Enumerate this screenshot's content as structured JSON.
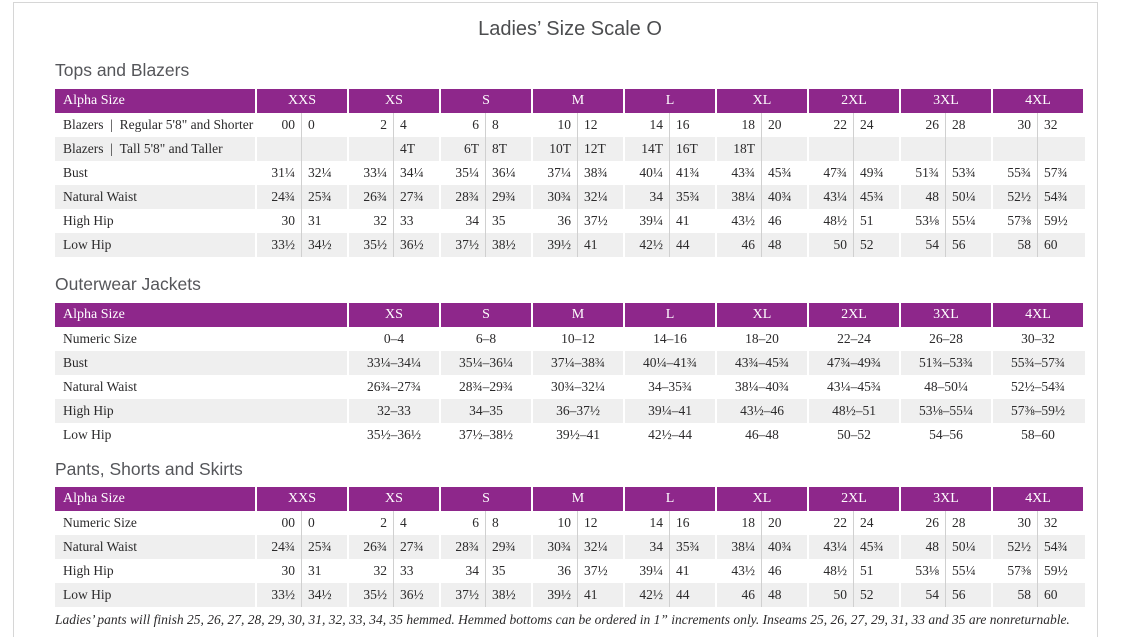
{
  "page": {
    "title": "Ladies’ Size Scale O",
    "footnote": "Ladies’ pants will finish 25, 26, 27, 28, 29, 30, 31, 32, 33, 34, 35 hemmed. Hemmed bottoms can be ordered in 1” increments only. Inseams 25, 26, 27, 29, 31, 33 and 35 are nonreturnable."
  },
  "colors": {
    "header_purple": "#8e278b",
    "row_stripe": "#efefef",
    "heading_gray": "#55565a",
    "text_dark": "#2b2a2b"
  },
  "tables": [
    {
      "section_title": "Tops and Blazers",
      "corner_label": "Alpha Size",
      "paired": true,
      "columns": [
        "XXS",
        "XS",
        "S",
        "M",
        "L",
        "XL",
        "2XL",
        "3XL",
        "4XL"
      ],
      "rows": [
        {
          "label": "Blazers | Regular 5'8\" and Shorter",
          "values": [
            "00",
            "0",
            "2",
            "4",
            "6",
            "8",
            "10",
            "12",
            "14",
            "16",
            "18",
            "20",
            "22",
            "24",
            "26",
            "28",
            "30",
            "32"
          ]
        },
        {
          "label": "Blazers | Tall 5'8\" and Taller",
          "values": [
            "",
            "",
            "",
            "4T",
            "6T",
            "8T",
            "10T",
            "12T",
            "14T",
            "16T",
            "18T",
            "",
            "",
            "",
            "",
            "",
            "",
            ""
          ]
        },
        {
          "label": "Bust",
          "values": [
            "31¼",
            "32¼",
            "33¼",
            "34¼",
            "35¼",
            "36¼",
            "37¼",
            "38¾",
            "40¼",
            "41¾",
            "43¾",
            "45¾",
            "47¾",
            "49¾",
            "51¾",
            "53¾",
            "55¾",
            "57¾"
          ]
        },
        {
          "label": "Natural Waist",
          "values": [
            "24¾",
            "25¾",
            "26¾",
            "27¾",
            "28¾",
            "29¾",
            "30¾",
            "32¼",
            "34",
            "35¾",
            "38¼",
            "40¾",
            "43¼",
            "45¾",
            "48",
            "50¼",
            "52½",
            "54¾"
          ]
        },
        {
          "label": "High Hip",
          "values": [
            "30",
            "31",
            "32",
            "33",
            "34",
            "35",
            "36",
            "37½",
            "39¼",
            "41",
            "43½",
            "46",
            "48½",
            "51",
            "53⅛",
            "55¼",
            "57⅜",
            "59½"
          ]
        },
        {
          "label": "Low Hip",
          "values": [
            "33½",
            "34½",
            "35½",
            "36½",
            "37½",
            "38½",
            "39½",
            "41",
            "42½",
            "44",
            "46",
            "48",
            "50",
            "52",
            "54",
            "56",
            "58",
            "60"
          ]
        }
      ]
    },
    {
      "section_title": "Outerwear Jackets",
      "corner_label": "Alpha Size",
      "paired": false,
      "columns": [
        "XS",
        "S",
        "M",
        "L",
        "XL",
        "2XL",
        "3XL",
        "4XL"
      ],
      "rows": [
        {
          "label": "Numeric Size",
          "values": [
            "0–4",
            "6–8",
            "10–12",
            "14–16",
            "18–20",
            "22–24",
            "26–28",
            "30–32"
          ]
        },
        {
          "label": "Bust",
          "values": [
            "33¼–34¼",
            "35¼–36¼",
            "37¼–38¾",
            "40¼–41¾",
            "43¾–45¾",
            "47¾–49¾",
            "51¾–53¾",
            "55¾–57¾"
          ]
        },
        {
          "label": "Natural Waist",
          "values": [
            "26¾–27¾",
            "28¾–29¾",
            "30¾–32¼",
            "34–35¾",
            "38¼–40¾",
            "43¼–45¾",
            "48–50¼",
            "52½–54¾"
          ]
        },
        {
          "label": "High Hip",
          "values": [
            "32–33",
            "34–35",
            "36–37½",
            "39¼–41",
            "43½–46",
            "48½–51",
            "53⅛–55¼",
            "57⅜–59½"
          ]
        },
        {
          "label": "Low Hip",
          "values": [
            "35½–36½",
            "37½–38½",
            "39½–41",
            "42½–44",
            "46–48",
            "50–52",
            "54–56",
            "58–60"
          ]
        }
      ]
    },
    {
      "section_title": "Pants, Shorts and Skirts",
      "corner_label": "Alpha Size",
      "paired": true,
      "columns": [
        "XXS",
        "XS",
        "S",
        "M",
        "L",
        "XL",
        "2XL",
        "3XL",
        "4XL"
      ],
      "rows": [
        {
          "label": "Numeric Size",
          "values": [
            "00",
            "0",
            "2",
            "4",
            "6",
            "8",
            "10",
            "12",
            "14",
            "16",
            "18",
            "20",
            "22",
            "24",
            "26",
            "28",
            "30",
            "32"
          ]
        },
        {
          "label": "Natural Waist",
          "values": [
            "24¾",
            "25¾",
            "26¾",
            "27¾",
            "28¾",
            "29¾",
            "30¾",
            "32¼",
            "34",
            "35¾",
            "38¼",
            "40¾",
            "43¼",
            "45¾",
            "48",
            "50¼",
            "52½",
            "54¾"
          ]
        },
        {
          "label": "High Hip",
          "values": [
            "30",
            "31",
            "32",
            "33",
            "34",
            "35",
            "36",
            "37½",
            "39¼",
            "41",
            "43½",
            "46",
            "48½",
            "51",
            "53⅛",
            "55¼",
            "57⅜",
            "59½"
          ]
        },
        {
          "label": "Low Hip",
          "values": [
            "33½",
            "34½",
            "35½",
            "36½",
            "37½",
            "38½",
            "39½",
            "41",
            "42½",
            "44",
            "46",
            "48",
            "50",
            "52",
            "54",
            "56",
            "58",
            "60"
          ]
        }
      ]
    }
  ]
}
